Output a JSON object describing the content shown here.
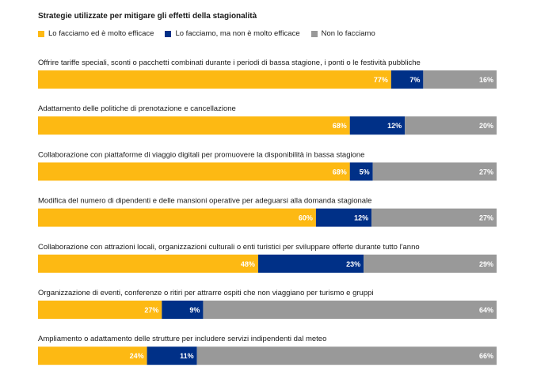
{
  "chart_data": {
    "type": "bar",
    "orientation": "horizontal-stacked-100",
    "title": "Strategie utilizzate per mitigare gli effetti della stagionalità",
    "legend_position": "top-left",
    "series": [
      {
        "name": "Lo facciamo ed è molto efficace",
        "color": "#FDB913",
        "values": [
          77,
          68,
          68,
          60,
          48,
          27,
          24
        ]
      },
      {
        "name": "Lo facciamo, ma non è molto efficace",
        "color": "#003087",
        "values": [
          7,
          12,
          5,
          12,
          23,
          9,
          11
        ]
      },
      {
        "name": "Non lo facciamo",
        "color": "#999999",
        "values": [
          16,
          20,
          27,
          27,
          29,
          64,
          66
        ]
      }
    ],
    "categories": [
      "Offrire tariffe speciali, sconti o pacchetti combinati durante i periodi di bassa stagione, i ponti o le festività pubbliche",
      "Adattamento delle politiche di prenotazione e cancellazione",
      "Collaborazione con piattaforme di viaggio digitali per promuovere la disponibilità in bassa stagione",
      "Modifica del numero di dipendenti e delle mansioni operative per adeguarsi alla domanda stagionale",
      "Collaborazione con attrazioni locali, organizzazioni culturali o enti turistici per sviluppare offerte durante tutto l'anno",
      "Organizzazione di eventi, conferenze o ritiri per attrarre ospiti che non viaggiano per turismo e gruppi",
      "Ampliamento o adattamento delle strutture per includere servizi indipendenti dal meteo"
    ]
  }
}
